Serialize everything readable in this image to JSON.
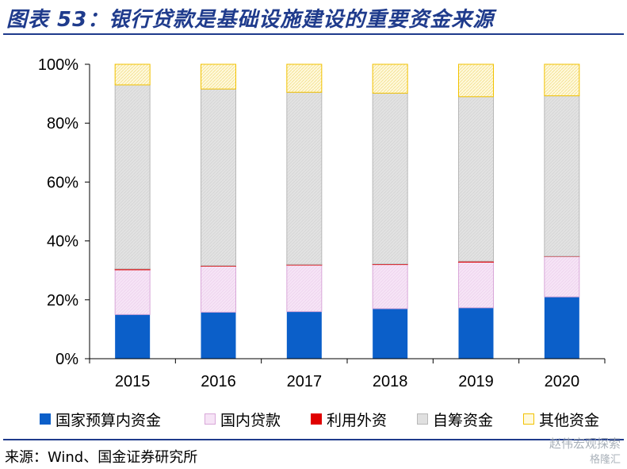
{
  "header": {
    "title": "图表 53：银行贷款是基础设施建设的重要资金来源"
  },
  "footer": {
    "source": "来源：Wind、国金证券研究所"
  },
  "watermark": {
    "text": "赵伟宏观探索",
    "brand": "格隆汇"
  },
  "chart_data": {
    "type": "bar",
    "stacked": true,
    "percent": true,
    "categories": [
      "2015",
      "2016",
      "2017",
      "2018",
      "2019",
      "2020"
    ],
    "series": [
      {
        "name": "国家预算内资金",
        "color": "#0b5fc9",
        "values": [
          15.0,
          15.8,
          16.0,
          17.0,
          17.3,
          21.0
        ]
      },
      {
        "name": "国内贷款",
        "color": "#f0d9f0",
        "values": [
          15.2,
          15.6,
          15.8,
          15.0,
          15.5,
          13.7
        ]
      },
      {
        "name": "利用外资",
        "color": "#e00000",
        "values": [
          0.3,
          0.2,
          0.2,
          0.2,
          0.3,
          0.1
        ]
      },
      {
        "name": "自筹资金",
        "color": "#dcdcdc",
        "values": [
          62.5,
          60.0,
          58.5,
          58.0,
          55.9,
          54.5
        ]
      },
      {
        "name": "其他资金",
        "color": "#fff6cc",
        "values": [
          7.0,
          8.4,
          9.5,
          9.8,
          11.0,
          10.7
        ]
      }
    ],
    "y_ticks": [
      "0%",
      "20%",
      "40%",
      "60%",
      "80%",
      "100%"
    ],
    "ylim": [
      0,
      100
    ],
    "legend_position": "bottom",
    "grid": false
  }
}
